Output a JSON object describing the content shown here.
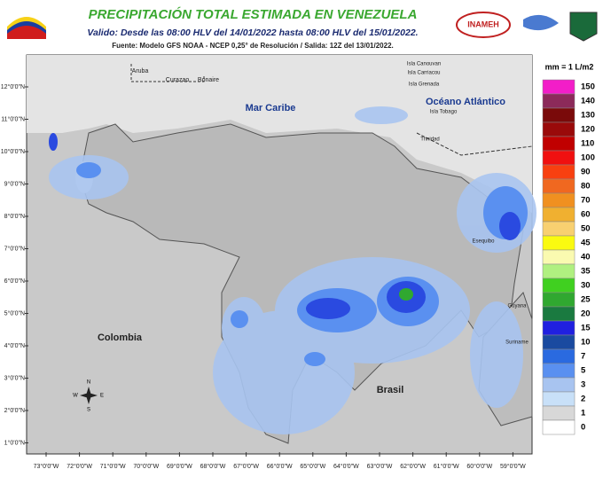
{
  "header": {
    "title": "PRECIPITACIÓN TOTAL ESTIMADA EN VENEZUELA",
    "subtitle": "Valido: Desde las 08:00 HLV del 14/01/2022 hasta 08:00 HLV del 15/01/2022.",
    "source": "Fuente: Modelo GFS NOAA - NCEP 0,25° de Resolución / Salida: 12Z del 13/01/2022.",
    "logo": "INAMEH"
  },
  "legend": {
    "unit": "mm = 1 L/m2",
    "items": [
      {
        "value": 150,
        "color": "#f21ec8"
      },
      {
        "value": 140,
        "color": "#8c2a5a"
      },
      {
        "value": 130,
        "color": "#7a0a0a"
      },
      {
        "value": 120,
        "color": "#9a0a0a"
      },
      {
        "value": 110,
        "color": "#c00000"
      },
      {
        "value": 100,
        "color": "#f01010"
      },
      {
        "value": 90,
        "color": "#f84010"
      },
      {
        "value": 80,
        "color": "#f06820"
      },
      {
        "value": 70,
        "color": "#f09020"
      },
      {
        "value": 60,
        "color": "#f0b030"
      },
      {
        "value": 50,
        "color": "#f8d070"
      },
      {
        "value": 45,
        "color": "#fafa10"
      },
      {
        "value": 40,
        "color": "#fafab0"
      },
      {
        "value": 35,
        "color": "#b0f080"
      },
      {
        "value": 30,
        "color": "#40d020"
      },
      {
        "value": 25,
        "color": "#30a830"
      },
      {
        "value": 20,
        "color": "#1a7a40"
      },
      {
        "value": 15,
        "color": "#2020e0"
      },
      {
        "value": 10,
        "color": "#1a4aa0"
      },
      {
        "value": 7,
        "color": "#2a6ae0"
      },
      {
        "value": 5,
        "color": "#5a90f0"
      },
      {
        "value": 3,
        "color": "#a8c4f0"
      },
      {
        "value": 2,
        "color": "#c8e0f8"
      },
      {
        "value": 1,
        "color": "#d8d8d8"
      },
      {
        "value": 0,
        "color": "#ffffff"
      }
    ]
  },
  "axes": {
    "lat_labels": [
      "12°0'0\"N",
      "11°0'0\"N",
      "10°0'0\"N",
      "9°0'0\"N",
      "8°0'0\"N",
      "7°0'0\"N",
      "6°0'0\"N",
      "5°0'0\"N",
      "4°0'0\"N",
      "3°0'0\"N",
      "2°0'0\"N",
      "1°0'0\"N"
    ],
    "lon_labels": [
      "73°0'0\"W",
      "72°0'0\"W",
      "71°0'0\"W",
      "70°0'0\"W",
      "69°0'0\"W",
      "68°0'0\"W",
      "67°0'0\"W",
      "66°0'0\"W",
      "65°0'0\"W",
      "64°0'0\"W",
      "63°0'0\"W",
      "62°0'0\"W",
      "61°0'0\"W",
      "60°0'0\"W",
      "59°0'0\"W"
    ]
  },
  "places": {
    "aruba": "Aruba",
    "curazao": "Curazao",
    "bonaire": "Bonaire",
    "mar_caribe": "Mar Caribe",
    "canouvan": "Isla Canouvan",
    "carriacou": "Isla Carriacou",
    "grenada": "Isla Grenada",
    "atlantico": "Océano Atlántico",
    "tobago": "Isla Tobago",
    "trinidad": "Trinidad",
    "esequibo": "Esequibo",
    "guyana": "Guyana",
    "suriname": "Suriname",
    "colombia": "Colombia",
    "brasil": "Brasil"
  },
  "compass": {
    "n": "N",
    "e": "E",
    "s": "S",
    "w": "W"
  }
}
